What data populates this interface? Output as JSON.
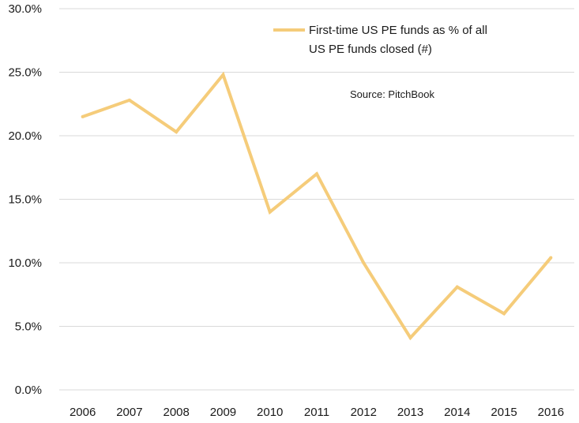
{
  "chart_data": {
    "type": "line",
    "categories": [
      "2006",
      "2007",
      "2008",
      "2009",
      "2010",
      "2011",
      "2012",
      "2013",
      "2014",
      "2015",
      "2016"
    ],
    "series": [
      {
        "name": "First-time US PE funds as % of all US PE funds closed (#)",
        "name_lines": [
          "First-time US PE funds as % of all",
          "US PE funds closed (#)"
        ],
        "values": [
          21.5,
          22.8,
          20.3,
          24.8,
          14.0,
          17.0,
          10.0,
          4.1,
          8.1,
          6.0,
          10.4
        ],
        "color": "#f5cc7a"
      }
    ],
    "y_ticks": [
      "0.0%",
      "5.0%",
      "10.0%",
      "15.0%",
      "20.0%",
      "25.0%",
      "30.0%"
    ],
    "ylim": [
      0,
      30
    ],
    "y_tick_step": 5,
    "grid": "horizontal",
    "legend_position": "top-right",
    "source_note": "Source: PitchBook",
    "title": "",
    "xlabel": "",
    "ylabel": ""
  }
}
